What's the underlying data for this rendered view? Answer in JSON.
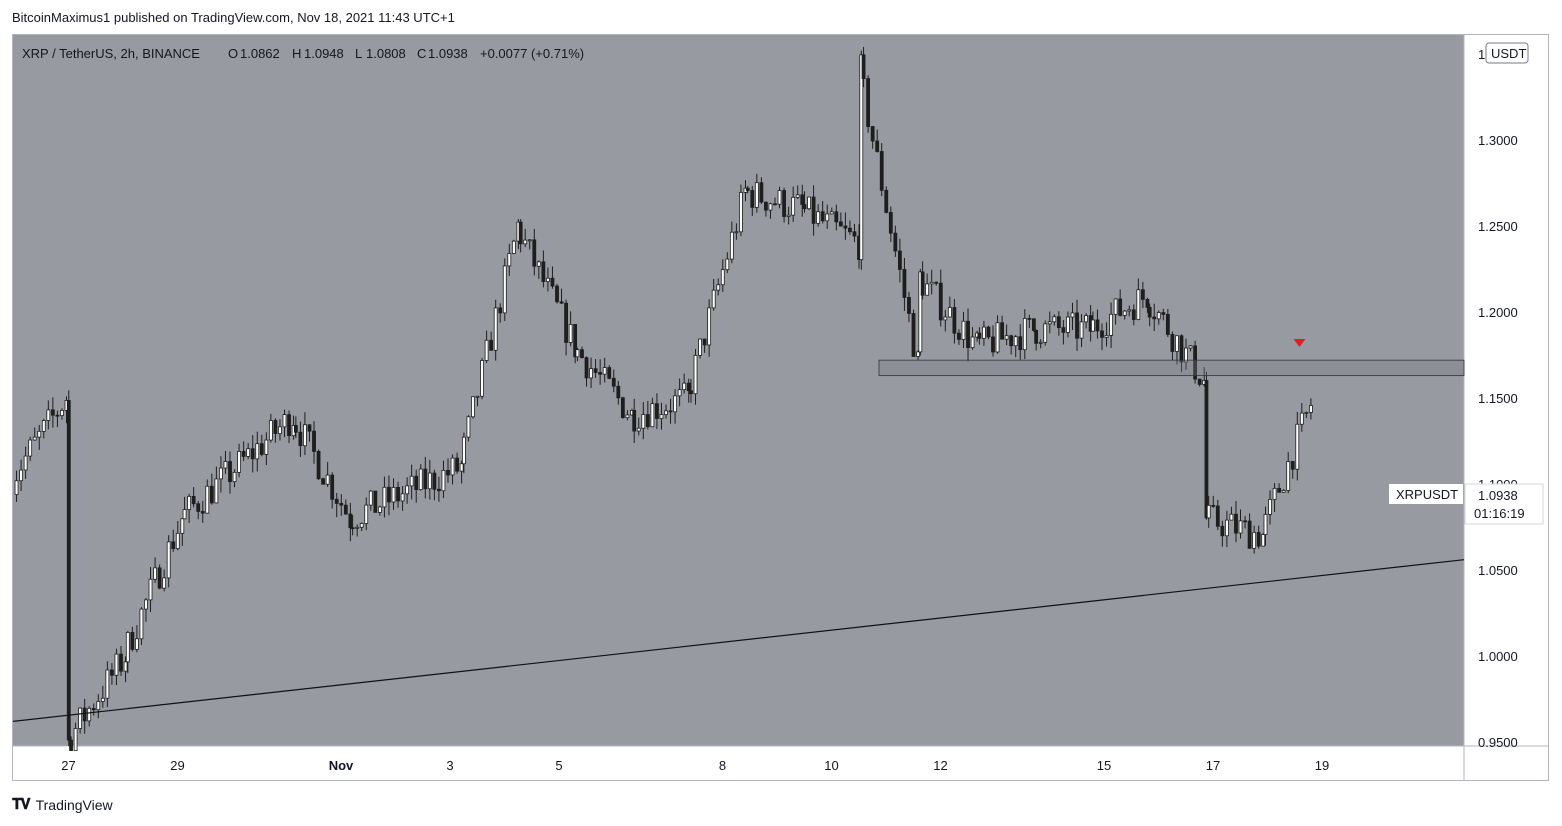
{
  "header": {
    "published": "BitcoinMaximus1 published on TradingView.com, Nov 18, 2021 11:43 UTC+1"
  },
  "legend": {
    "symbol": "XRP / TetherUS, 2h, BINANCE",
    "o_label": "O",
    "o_value": "1.0862",
    "h_label": "H",
    "h_value": "1.0948",
    "l_label": "L",
    "l_value": "1.0808",
    "c_label": "C",
    "c_value": "1.0938",
    "change": "+0.0077 (+0.71%)"
  },
  "axis": {
    "currency": "USDT",
    "top_tick": "1",
    "price_ticks": [
      "1.3000",
      "1.2500",
      "1.2000",
      "1.1500",
      "1.1000",
      "1.0500",
      "1.0000",
      "0.9500"
    ],
    "date_ticks": [
      "27",
      "29",
      "Nov",
      "3",
      "5",
      "8",
      "10",
      "12",
      "15",
      "17",
      "19"
    ]
  },
  "price_tag": {
    "symbol": "XRPUSDT",
    "price": "1.0938",
    "countdown": "01:16:19"
  },
  "footer": {
    "logo_text": "TradingView"
  },
  "colors": {
    "background": "#989aa2",
    "candle": "#1e1e1e",
    "marker": "#e02020"
  },
  "chart_data": {
    "type": "candlestick",
    "symbol": "XRP / TetherUS",
    "interval": "2h",
    "exchange": "BINANCE",
    "ylim": [
      0.95,
      1.35
    ],
    "y_ticks": [
      0.95,
      1.0,
      1.05,
      1.1,
      1.15,
      1.2,
      1.25,
      1.3
    ],
    "x_range_days": [
      "2021-10-26",
      "2021-11-21"
    ],
    "last_close": 1.0938,
    "key_points": [
      {
        "date": "2021-10-26",
        "price": 1.1
      },
      {
        "date": "2021-10-27",
        "price": 1.15
      },
      {
        "date": "2021-10-27",
        "price": 0.95
      },
      {
        "date": "2021-10-28",
        "price": 1.0
      },
      {
        "date": "2021-10-29",
        "price": 1.08
      },
      {
        "date": "2021-10-31",
        "price": 1.14
      },
      {
        "date": "2021-11-01",
        "price": 1.08
      },
      {
        "date": "2021-11-03",
        "price": 1.11
      },
      {
        "date": "2021-11-04",
        "price": 1.25
      },
      {
        "date": "2021-11-05",
        "price": 1.18
      },
      {
        "date": "2021-11-06",
        "price": 1.14
      },
      {
        "date": "2021-11-07",
        "price": 1.15
      },
      {
        "date": "2021-11-08",
        "price": 1.27
      },
      {
        "date": "2021-11-09",
        "price": 1.26
      },
      {
        "date": "2021-11-10",
        "price": 1.24
      },
      {
        "date": "2021-11-10",
        "price": 1.34
      },
      {
        "date": "2021-11-11",
        "price": 1.17
      },
      {
        "date": "2021-11-11",
        "price": 1.22
      },
      {
        "date": "2021-11-12",
        "price": 1.18
      },
      {
        "date": "2021-11-13",
        "price": 1.19
      },
      {
        "date": "2021-11-14",
        "price": 1.19
      },
      {
        "date": "2021-11-15",
        "price": 1.21
      },
      {
        "date": "2021-11-16",
        "price": 1.16
      },
      {
        "date": "2021-11-16",
        "price": 1.08
      },
      {
        "date": "2021-11-17",
        "price": 1.07
      },
      {
        "date": "2021-11-18",
        "price": 1.16
      },
      {
        "date": "2021-11-18",
        "price": 1.0938
      }
    ],
    "annotations": {
      "ascending_support": {
        "from": {
          "date": "2021-10-26",
          "price": 0.962
        },
        "to": {
          "date": "2021-11-21",
          "price": 1.056
        }
      },
      "resistance_zone": {
        "from_date": "2021-11-11",
        "price_low": 1.163,
        "price_high": 1.172
      },
      "rejection_marker": {
        "date": "2021-11-18",
        "price": 1.182
      }
    }
  }
}
